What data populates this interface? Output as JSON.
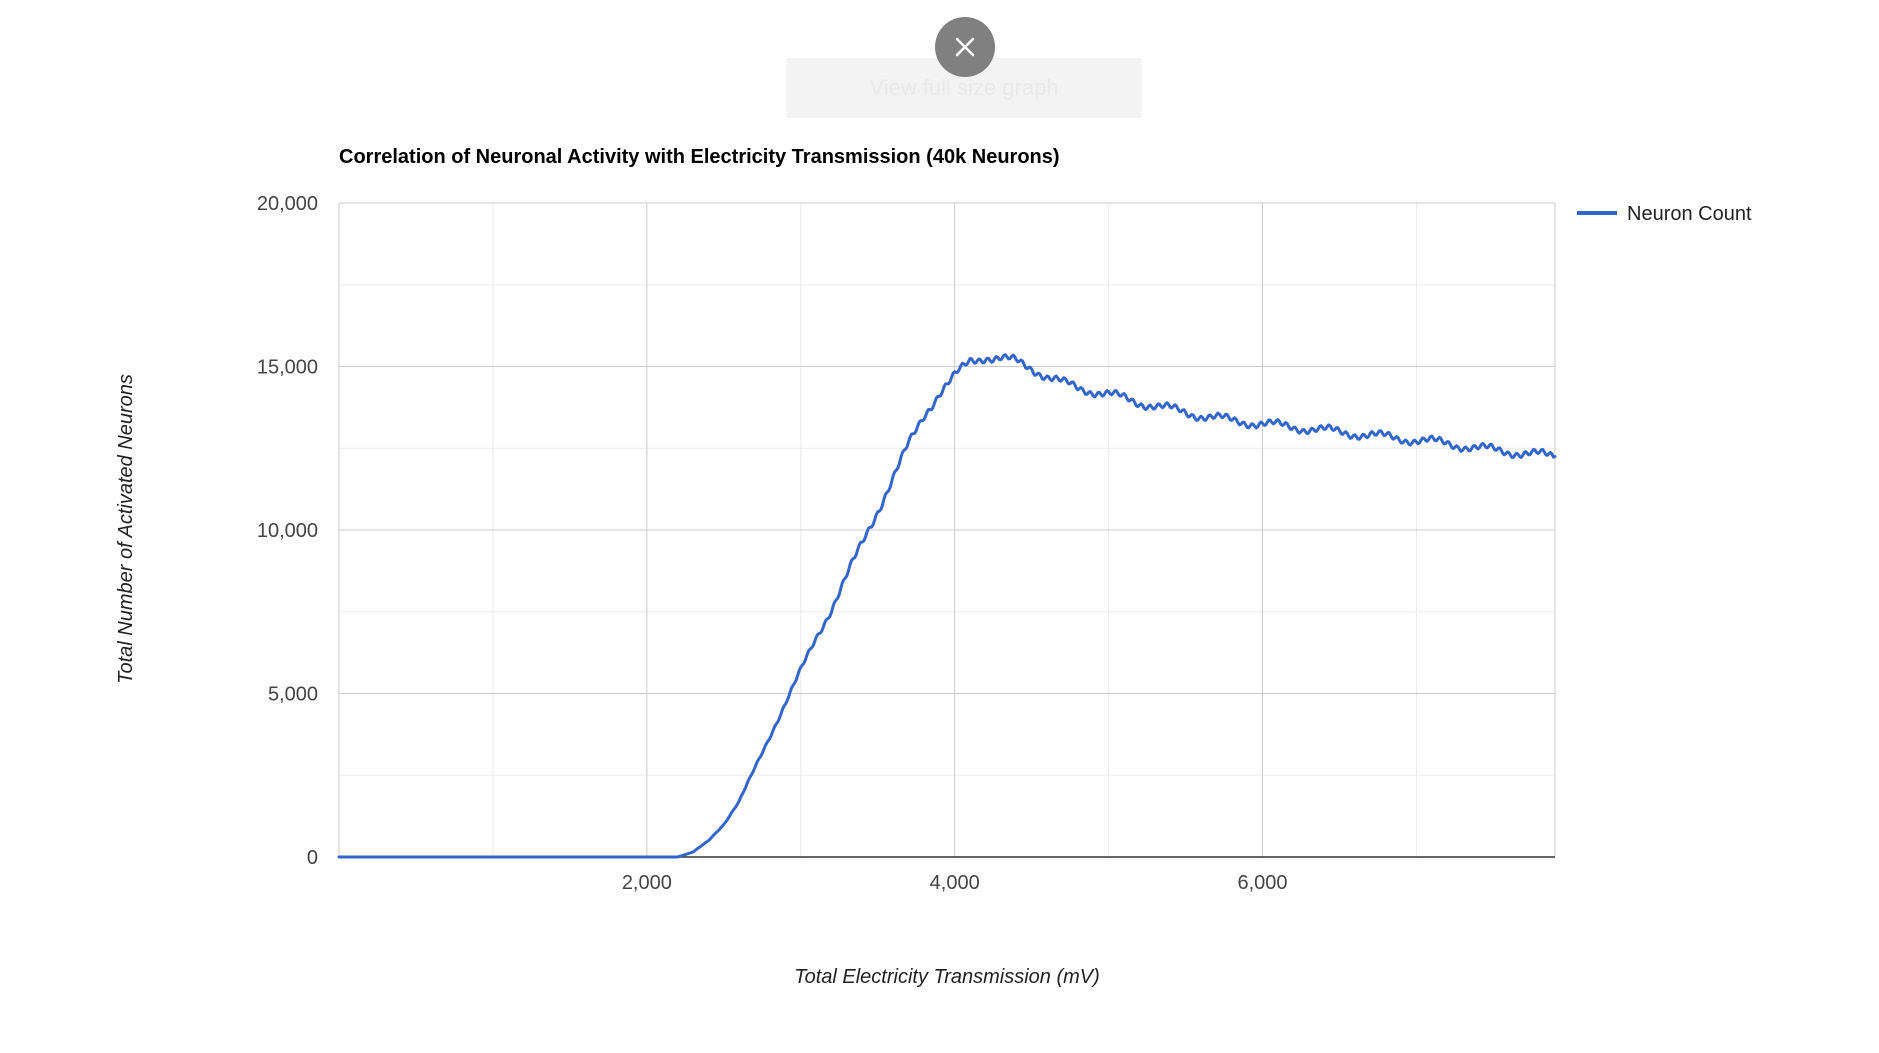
{
  "overlay": {
    "hidden_button_label": "View full size graph",
    "close_icon": "close-icon"
  },
  "chart_data": {
    "type": "line",
    "title": "Correlation of Neuronal Activity with Electricity Transmission (40k Neurons)",
    "xlabel": "Total Electricity Transmission (mV)",
    "ylabel": "Total Number of Activated Neurons",
    "xlim": [
      0,
      7900
    ],
    "ylim": [
      0,
      20000
    ],
    "x_major_ticks": [
      2000,
      4000,
      6000
    ],
    "x_tick_labels": [
      "2,000",
      "4,000",
      "6,000"
    ],
    "x_minor_gridlines": [
      1000,
      3000,
      5000,
      7000
    ],
    "y_major_ticks": [
      0,
      5000,
      10000,
      15000,
      20000
    ],
    "y_tick_labels": [
      "0",
      "5,000",
      "10,000",
      "15,000",
      "20,000"
    ],
    "y_minor_gridlines": [
      2500,
      7500,
      12500,
      17500
    ],
    "grid": true,
    "legend_position": "right",
    "series": [
      {
        "name": "Neuron Count",
        "color": "#3366cc",
        "x": [
          0,
          500,
          1000,
          1500,
          2000,
          2200,
          2300,
          2400,
          2500,
          2600,
          2700,
          2800,
          2900,
          3000,
          3100,
          3200,
          3300,
          3400,
          3500,
          3600,
          3700,
          3800,
          3900,
          4000,
          4100,
          4200,
          4300,
          4400,
          4500,
          4600,
          4700,
          4800,
          4900,
          5000,
          5200,
          5400,
          5600,
          5800,
          6000,
          6200,
          6400,
          6600,
          6800,
          7000,
          7200,
          7400,
          7600,
          7800,
          7900
        ],
        "y": [
          0,
          0,
          0,
          0,
          0,
          0,
          150,
          500,
          1000,
          1700,
          2700,
          3700,
          4700,
          5700,
          6700,
          7600,
          8600,
          9600,
          10600,
          11600,
          12600,
          13500,
          14200,
          14700,
          15150,
          15300,
          15250,
          15150,
          14950,
          14700,
          14500,
          14350,
          14250,
          14150,
          13900,
          13700,
          13500,
          13350,
          13250,
          13150,
          13050,
          12950,
          12850,
          12750,
          12650,
          12500,
          12400,
          12300,
          12250
        ]
      }
    ]
  }
}
